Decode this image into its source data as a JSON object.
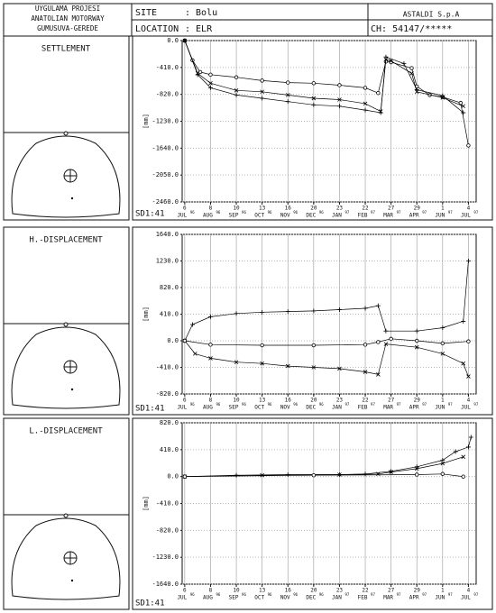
{
  "header": {
    "project": [
      "UYGULAMA PROJESI",
      "ANATOLIAN MOTORWAY",
      "GUMUSUVA-GEREDE"
    ],
    "site_label": "SITE",
    "site": ": Bolu",
    "location_label": "LOCATION",
    "location": ": ELR",
    "company": "ASTALDI S.p.A",
    "ch": "CH: 54147/*****"
  },
  "chart_data": [
    {
      "type": "line",
      "title": "SETTLEMENT",
      "ylabel": "[mm]",
      "code": "SD1:41",
      "grid": true,
      "ylim": [
        -2460,
        0
      ],
      "yticks": [
        {
          "value": 0,
          "label": "0.0"
        },
        {
          "value": -410,
          "label": "-410.0"
        },
        {
          "value": -820,
          "label": "-820.0"
        },
        {
          "value": -1230,
          "label": "-1230.0"
        },
        {
          "value": -1640,
          "label": "-1640.0"
        },
        {
          "value": -2050,
          "label": "-2050.0"
        },
        {
          "value": -2460,
          "label": "-2460.0"
        }
      ],
      "xlim": [
        -0.1,
        11.3
      ],
      "xticks": [
        0,
        1,
        2,
        3,
        4,
        5,
        6,
        7,
        8,
        9,
        10,
        11
      ],
      "xtick_days": [
        "6",
        "8",
        "10",
        "13",
        "16",
        "20",
        "23",
        "22",
        "27",
        "29",
        "1",
        "4"
      ],
      "xtick_months": [
        "JUL",
        "AUG",
        "SEP",
        "OCT",
        "NOV",
        "DEC",
        "JAN",
        "FEB",
        "MAR",
        "APR",
        "JUN",
        "JUL"
      ],
      "xtick_years": [
        "96",
        "96",
        "96",
        "96",
        "96",
        "96",
        "97",
        "97",
        "97",
        "97",
        "97",
        "97"
      ],
      "series": [
        {
          "marker": "o",
          "color": "#000000",
          "x": [
            0,
            0.3,
            0.6,
            1,
            2,
            3,
            4,
            5,
            6,
            7,
            7.5,
            7.8,
            8,
            8.8,
            9,
            9.5,
            10,
            10.7,
            11
          ],
          "values": [
            0,
            -300,
            -480,
            -520,
            -560,
            -610,
            -640,
            -650,
            -680,
            -720,
            -800,
            -320,
            -330,
            -420,
            -700,
            -830,
            -860,
            -950,
            -1600
          ]
        },
        {
          "marker": "x",
          "color": "#000000",
          "x": [
            0,
            0.5,
            1,
            2,
            3,
            4,
            5,
            6,
            7,
            7.6,
            7.8,
            8,
            8.8,
            9,
            10,
            10.8
          ],
          "values": [
            0,
            -500,
            -650,
            -760,
            -780,
            -830,
            -880,
            -900,
            -960,
            -1080,
            -290,
            -310,
            -500,
            -780,
            -870,
            -1000
          ]
        },
        {
          "marker": "+",
          "color": "#000000",
          "x": [
            0,
            0.5,
            1,
            2,
            3,
            4,
            5,
            6,
            7,
            7.6,
            7.8,
            8.5,
            9,
            10,
            10.8
          ],
          "values": [
            0,
            -520,
            -720,
            -830,
            -880,
            -930,
            -980,
            -1000,
            -1060,
            -1100,
            -250,
            -350,
            -750,
            -840,
            -1100
          ]
        }
      ]
    },
    {
      "type": "line",
      "title": "H.-DISPLACEMENT",
      "ylabel": "[mm]",
      "code": "SD1:41",
      "grid": true,
      "ylim": [
        -820,
        1640
      ],
      "yticks": [
        {
          "value": 1640,
          "label": "1640.0"
        },
        {
          "value": 1230,
          "label": "1230.0"
        },
        {
          "value": 820,
          "label": "820.0"
        },
        {
          "value": 410,
          "label": "410.0"
        },
        {
          "value": 0,
          "label": "0.0"
        },
        {
          "value": -410,
          "label": "-410.0"
        },
        {
          "value": -820,
          "label": "-820.0"
        }
      ],
      "xlim": [
        -0.1,
        11.3
      ],
      "xticks": [
        0,
        1,
        2,
        3,
        4,
        5,
        6,
        7,
        8,
        9,
        10,
        11
      ],
      "xtick_days": [
        "6",
        "8",
        "10",
        "13",
        "16",
        "20",
        "23",
        "22",
        "27",
        "29",
        "1",
        "4"
      ],
      "xtick_months": [
        "JUL",
        "AUG",
        "SEP",
        "OCT",
        "NOV",
        "DEC",
        "JAN",
        "FEB",
        "MAR",
        "APR",
        "JUN",
        "JUL"
      ],
      "xtick_years": [
        "96",
        "96",
        "96",
        "96",
        "96",
        "96",
        "97",
        "97",
        "97",
        "97",
        "97",
        "97"
      ],
      "series": [
        {
          "marker": "+",
          "color": "#000000",
          "x": [
            0,
            0.3,
            1,
            2,
            3,
            4,
            5,
            6,
            7,
            7.5,
            7.8,
            9,
            10,
            10.8,
            11
          ],
          "values": [
            0,
            250,
            370,
            420,
            440,
            450,
            460,
            480,
            500,
            540,
            150,
            150,
            200,
            300,
            1230
          ]
        },
        {
          "marker": "x",
          "color": "#000000",
          "x": [
            0,
            0.4,
            1,
            2,
            3,
            4,
            5,
            6,
            7,
            7.5,
            7.8,
            9,
            10,
            10.8,
            11
          ],
          "values": [
            0,
            -200,
            -270,
            -330,
            -350,
            -390,
            -410,
            -430,
            -480,
            -520,
            -50,
            -100,
            -200,
            -350,
            -550
          ]
        },
        {
          "marker": "o",
          "color": "#000000",
          "x": [
            0,
            1,
            3,
            5,
            7,
            7.5,
            8,
            9,
            10,
            11
          ],
          "values": [
            0,
            -60,
            -70,
            -70,
            -60,
            -20,
            30,
            0,
            -40,
            -10
          ]
        }
      ]
    },
    {
      "type": "line",
      "title": "L.-DISPLACEMENT",
      "ylabel": "[mm]",
      "code": "SD1:41",
      "grid": true,
      "ylim": [
        -1640,
        820
      ],
      "yticks": [
        {
          "value": 820,
          "label": "820.0"
        },
        {
          "value": 410,
          "label": "410.0"
        },
        {
          "value": 0,
          "label": "0.0"
        },
        {
          "value": -410,
          "label": "-410.0"
        },
        {
          "value": -820,
          "label": "-820.0"
        },
        {
          "value": -1230,
          "label": "-1230.0"
        },
        {
          "value": -1640,
          "label": "-1640.0"
        }
      ],
      "xlim": [
        -0.1,
        11.3
      ],
      "xticks": [
        0,
        1,
        2,
        3,
        4,
        5,
        6,
        7,
        8,
        9,
        10,
        11
      ],
      "xtick_days": [
        "6",
        "8",
        "10",
        "13",
        "16",
        "20",
        "23",
        "22",
        "27",
        "29",
        "1",
        "4"
      ],
      "xtick_months": [
        "JUL",
        "AUG",
        "SEP",
        "OCT",
        "NOV",
        "DEC",
        "JAN",
        "FEB",
        "MAR",
        "APR",
        "JUN",
        "JUL"
      ],
      "xtick_years": [
        "96",
        "96",
        "96",
        "96",
        "96",
        "96",
        "97",
        "97",
        "97",
        "97",
        "97",
        "97"
      ],
      "series": [
        {
          "marker": "+",
          "color": "#000000",
          "x": [
            0,
            2,
            4,
            6,
            7,
            8,
            9,
            10,
            10.5,
            11,
            11.1
          ],
          "values": [
            0,
            20,
            30,
            30,
            40,
            80,
            150,
            250,
            380,
            450,
            600
          ]
        },
        {
          "marker": "x",
          "color": "#000000",
          "x": [
            0,
            3,
            6,
            7.5,
            8,
            9,
            10,
            10.8
          ],
          "values": [
            0,
            20,
            30,
            40,
            70,
            120,
            200,
            300
          ]
        },
        {
          "marker": "o",
          "color": "#000000",
          "x": [
            0,
            5,
            9,
            10,
            10.8
          ],
          "values": [
            0,
            20,
            30,
            40,
            0
          ]
        }
      ]
    }
  ]
}
